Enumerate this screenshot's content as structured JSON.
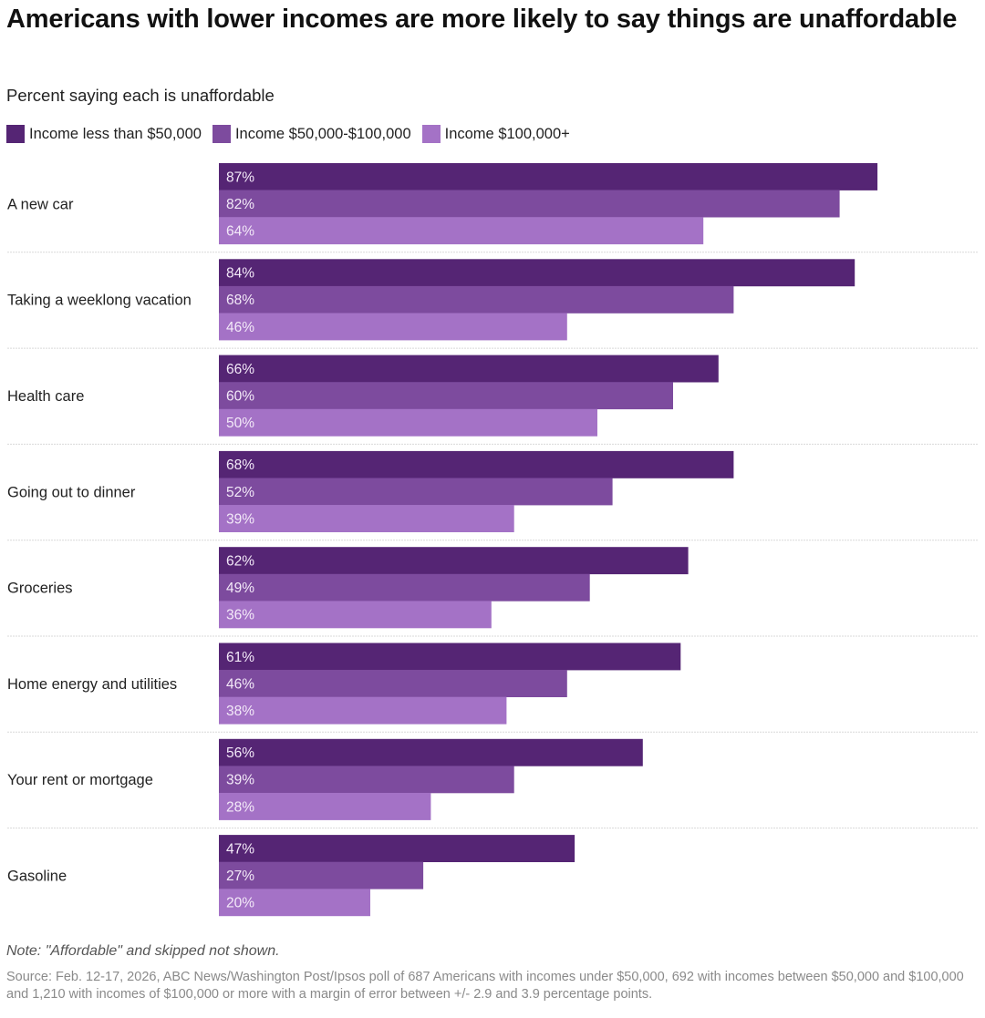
{
  "header": {
    "title": "Americans with lower incomes are more likely to say things are unaffordable",
    "subtitle": "Percent saying each is unaffordable"
  },
  "legend": [
    {
      "label": "Income less than $50,000",
      "color": "#552574"
    },
    {
      "label": "Income $50,000-$100,000",
      "color": "#7d4b9e"
    },
    {
      "label": "Income $100,000+",
      "color": "#a472c6"
    }
  ],
  "chart_data": {
    "type": "bar",
    "orientation": "horizontal-grouped",
    "title": "Americans with lower incomes are more likely to say things are unaffordable",
    "subtitle": "Percent saying each is unaffordable",
    "xlabel": "",
    "ylabel": "",
    "xlim": [
      0,
      100
    ],
    "grid": false,
    "legend_position": "top-left",
    "categories": [
      "A new car",
      "Taking a weeklong vacation",
      "Health care",
      "Going out to dinner",
      "Groceries",
      "Home energy and utilities",
      "Your rent or mortgage",
      "Gasoline"
    ],
    "series": [
      {
        "name": "Income less than $50,000",
        "color": "#552574",
        "values": [
          87,
          84,
          66,
          68,
          62,
          61,
          56,
          47
        ]
      },
      {
        "name": "Income $50,000-$100,000",
        "color": "#7d4b9e",
        "values": [
          82,
          68,
          60,
          52,
          49,
          46,
          39,
          27
        ]
      },
      {
        "name": "Income $100,000+",
        "color": "#a472c6",
        "values": [
          64,
          46,
          50,
          39,
          36,
          38,
          28,
          20
        ]
      }
    ],
    "value_suffix": "%"
  },
  "footer": {
    "note": "Note: \"Affordable\" and skipped not shown.",
    "source": "Source: Feb. 12-17, 2026, ABC News/Washington Post/Ipsos poll of 687 Americans with incomes under $50,000, 692 with incomes between $50,000 and $100,000 and 1,210 with incomes of $100,000 or more with a margin of error between +/- 2.9 and 3.9 percentage points."
  }
}
